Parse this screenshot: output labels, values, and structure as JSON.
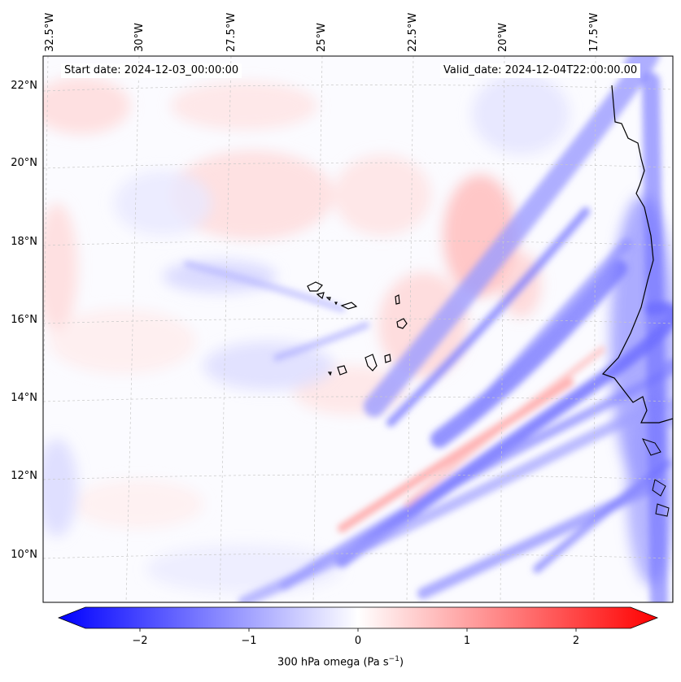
{
  "map": {
    "start_label": "Start date: 2024-12-03_00:00:00",
    "valid_label": "Valid_date: 2024-12-04T22:00:00.00",
    "lon_labels": [
      "32.5°W",
      "30°W",
      "27.5°W",
      "25°W",
      "22.5°W",
      "20°W",
      "17.5°W"
    ],
    "lat_labels": [
      "22°N",
      "20°N",
      "18°N",
      "16°N",
      "14°N",
      "12°N",
      "10°N"
    ],
    "colors": {
      "negative": "#0000ff",
      "neutral": "#ffffff",
      "positive": "#ff0000",
      "coast": "#000000"
    }
  },
  "colorbar": {
    "title": "300 hPa omega (Pa s",
    "title_sup": "−1",
    "title_end": ")",
    "ticks": [
      "−2",
      "−1",
      "0",
      "1",
      "2"
    ],
    "tick_values": [
      -2,
      -1,
      0,
      1,
      2
    ],
    "range": [
      -2.6,
      2.6
    ]
  }
}
